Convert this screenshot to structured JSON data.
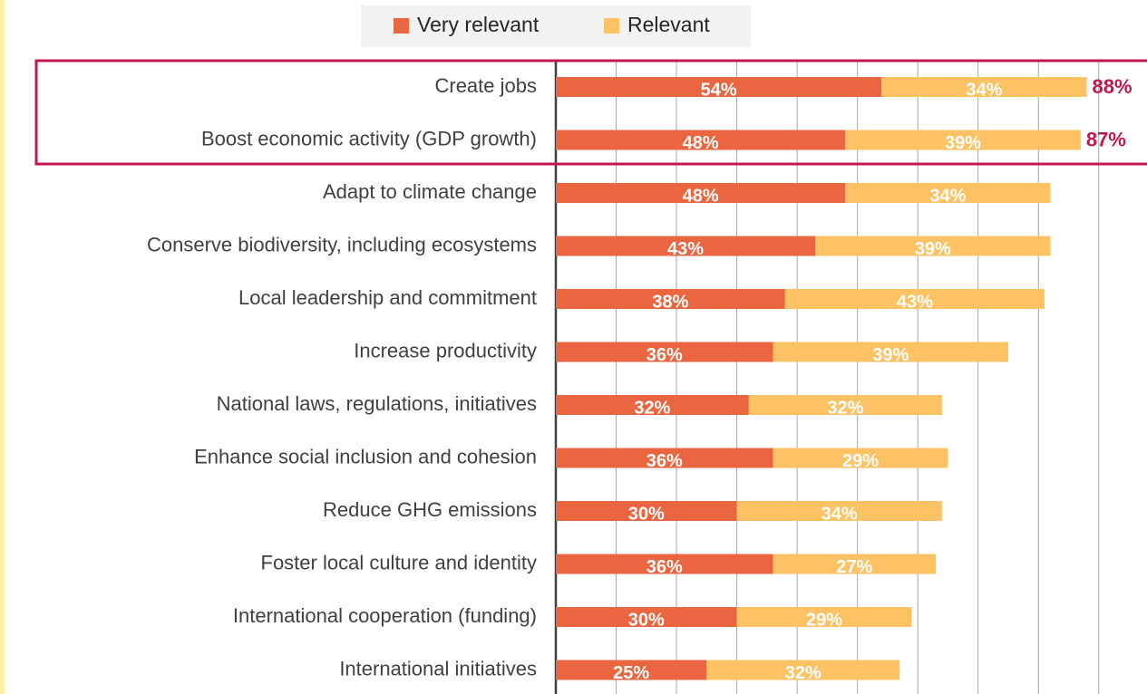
{
  "chart_data": {
    "type": "stacked_bar_horizontal",
    "categories": [
      "Create jobs",
      "Boost economic activity (GDP growth)",
      "Adapt to climate change",
      "Conserve biodiversity, including ecosystems",
      "Local leadership and commitment",
      "Increase productivity",
      "National laws, regulations, initiatives",
      "Enhance social inclusion and cohesion",
      "Reduce GHG emissions",
      "Foster local culture and identity",
      "International cooperation (funding)",
      "International initiatives"
    ],
    "series": [
      {
        "name": "Very relevant",
        "color": "#e96640",
        "values": [
          54,
          48,
          48,
          43,
          38,
          36,
          32,
          36,
          30,
          36,
          30,
          25
        ],
        "value_labels": [
          "54%",
          "48%",
          "48%",
          "43%",
          "38%",
          "36%",
          "32%",
          "36%",
          "30%",
          "36%",
          "30%",
          "25%"
        ]
      },
      {
        "name": "Relevant",
        "color": "#fdc263",
        "values": [
          34,
          39,
          34,
          39,
          43,
          39,
          32,
          29,
          34,
          27,
          29,
          32
        ],
        "value_labels": [
          "34%",
          "39%",
          "34%",
          "39%",
          "43%",
          "39%",
          "32%",
          "29%",
          "34%",
          "27%",
          "29%",
          "32%"
        ]
      }
    ],
    "totals": [
      88,
      87
    ],
    "total_labels": [
      "88%",
      "87%"
    ],
    "xlim": [
      0,
      98
    ],
    "xticks": [
      0,
      10,
      20,
      30,
      40,
      50,
      60,
      70,
      80,
      90
    ],
    "grid": true,
    "legend": "top"
  }
}
